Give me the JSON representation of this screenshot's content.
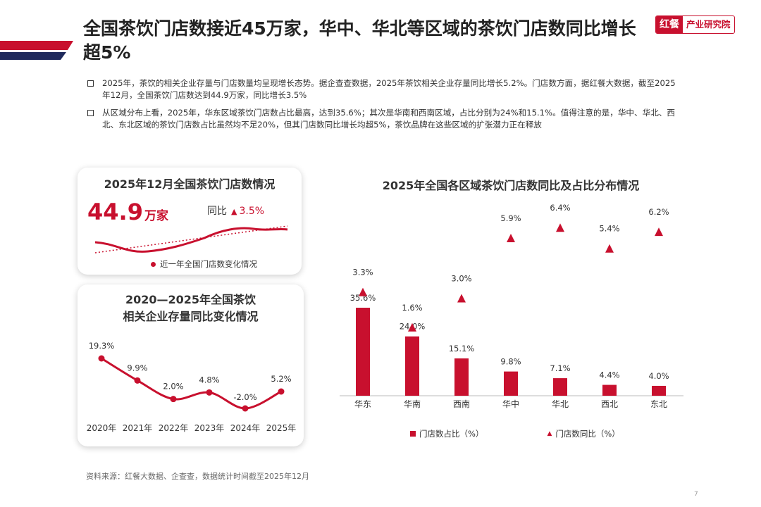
{
  "header": {
    "title": "全国茶饮门店数接近45万家，华中、华北等区域的茶饮门店数同比增长超5%",
    "brand_logo": "红餐",
    "brand_label": "产业研究院"
  },
  "bullets": [
    "2025年，茶饮的相关企业存量与门店数量均呈现增长态势。据企查查数据，2025年茶饮相关企业存量同比增长5.2%。门店数方面，据红餐大数据，截至2025年12月，全国茶饮门店数达到44.9万家，同比增长3.5%",
    "从区域分布上看，2025年，华东区域茶饮门店数占比最高，达到35.6%；其次是华南和西南区域，占比分别为24%和15.1%。值得注意的是，华中、华北、西北、东北区域的茶饮门店数占比虽然均不足20%，但其门店数同比增长均超5%，茶饮品牌在这些区域的扩张潜力正在释放"
  ],
  "store_card": {
    "title": "2025年12月全国茶饮门店数情况",
    "value": "44.9",
    "unit": "万家",
    "yoy_label": "同比",
    "yoy_value": "3.5%",
    "legend": "近一年全国门店数变化情况"
  },
  "enterprise_card": {
    "title_line1": "2020—2025年全国茶饮",
    "title_line2": "相关企业存量同比变化情况"
  },
  "regional": {
    "title": "2025年全国各区域茶饮门店数同比及占比分布情况",
    "legend_share": "门店数占比（%）",
    "legend_yoy": "门店数同比（%）"
  },
  "chart_data": [
    {
      "type": "line",
      "title": "2020—2025年全国茶饮相关企业存量同比变化情况",
      "categories": [
        "2020年",
        "2021年",
        "2022年",
        "2023年",
        "2024年",
        "2025年"
      ],
      "values": [
        19.3,
        9.9,
        2.0,
        4.8,
        -2.0,
        5.2
      ],
      "labels": [
        "19.3%",
        "9.9%",
        "2.0%",
        "4.8%",
        "-2.0%",
        "5.2%"
      ]
    },
    {
      "type": "bar",
      "title": "2025年全国各区域茶饮门店数同比及占比分布情况",
      "categories": [
        "华东",
        "华南",
        "西南",
        "华中",
        "华北",
        "西北",
        "东北"
      ],
      "series": [
        {
          "name": "门店数占比（%）",
          "type": "bar",
          "values": [
            35.6,
            24.0,
            15.1,
            9.8,
            7.1,
            4.4,
            4.0
          ],
          "labels": [
            "35.6%",
            "24.0%",
            "15.1%",
            "9.8%",
            "7.1%",
            "4.4%",
            "4.0%"
          ]
        },
        {
          "name": "门店数同比（%）",
          "type": "scatter",
          "marker": "triangle",
          "values": [
            3.3,
            1.6,
            3.0,
            5.9,
            6.4,
            5.4,
            6.2
          ],
          "labels": [
            "3.3%",
            "1.6%",
            "3.0%",
            "5.9%",
            "6.4%",
            "5.4%",
            "6.2%"
          ]
        }
      ]
    }
  ],
  "footer": {
    "source": "资料来源：红餐大数据、企查查，数据统计时间截至2025年12月",
    "page": "7"
  },
  "colors": {
    "accent": "#c8102e",
    "navy": "#1f2a5c"
  }
}
